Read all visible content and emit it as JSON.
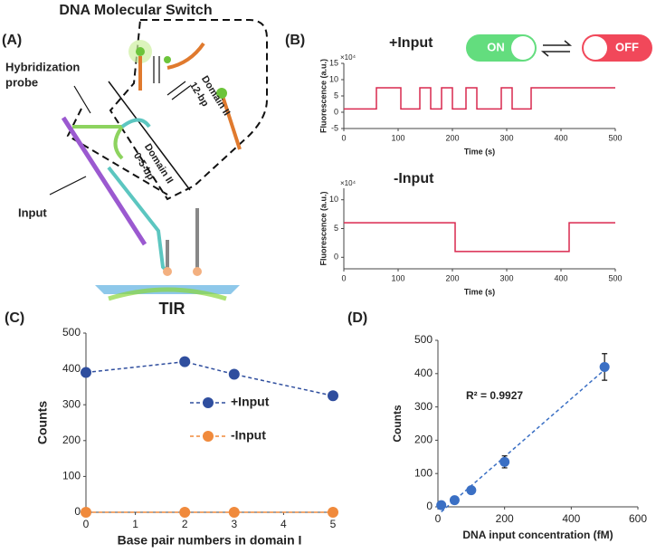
{
  "figure": {
    "title": "DNA Molecular Switch",
    "panels": [
      "(A)",
      "(B)",
      "(C)",
      "(D)"
    ],
    "diagram": {
      "probe_line1": "Hybridization",
      "probe_line2": "probe",
      "input": "Input",
      "domain_upper": "Domain II",
      "domain_upper_bp": "12-bp",
      "domain_lower": "Domain II",
      "domain_lower_bp": "0-5-bp",
      "tir": "TIR"
    },
    "switch": {
      "on": "ON",
      "off": "OFF"
    }
  },
  "chart_data": [
    {
      "type": "line",
      "title": "+Input",
      "xlabel": "Time (s)",
      "ylabel": "Fluorescence (a.u.)",
      "yscale_label": "×10⁴",
      "x": [
        0,
        60,
        60,
        105,
        105,
        140,
        140,
        160,
        160,
        180,
        180,
        200,
        200,
        225,
        225,
        245,
        245,
        290,
        290,
        310,
        310,
        345,
        345,
        500
      ],
      "series": [
        {
          "color": "#d9284f",
          "values": [
            1,
            1,
            7.5,
            7.5,
            1,
            1,
            7.5,
            7.5,
            1,
            1,
            7.5,
            7.5,
            1,
            1,
            7.5,
            7.5,
            1,
            1,
            7.5,
            7.5,
            1,
            1,
            7.5,
            7.5
          ]
        }
      ],
      "xlim": [
        0,
        500
      ],
      "xticks": [
        0,
        100,
        200,
        300,
        400,
        500
      ],
      "ylim": [
        -5,
        15
      ],
      "yticks": [
        -5,
        0,
        5,
        10,
        15
      ]
    },
    {
      "type": "line",
      "title": "-Input",
      "xlabel": "Time (s)",
      "ylabel": "Fluorescence (a.u.)",
      "yscale_label": "×10⁴",
      "x": [
        0,
        205,
        205,
        415,
        415,
        500
      ],
      "series": [
        {
          "color": "#d9284f",
          "values": [
            6,
            6,
            1,
            1,
            6,
            6
          ]
        }
      ],
      "xlim": [
        0,
        500
      ],
      "xticks": [
        0,
        100,
        200,
        300,
        400,
        500
      ],
      "ylim": [
        -2,
        12
      ],
      "yticks": [
        0,
        5,
        10
      ]
    },
    {
      "type": "line",
      "xlabel": "Base pair numbers in domain I",
      "ylabel": "Counts",
      "x": [
        0,
        2,
        3,
        5
      ],
      "line_style": "dashed",
      "markers": true,
      "legend": "center",
      "series": [
        {
          "name": "+Input",
          "color": "#2f4e9e",
          "values": [
            390,
            420,
            385,
            325
          ]
        },
        {
          "name": "-Input",
          "color": "#f08a3c",
          "values": [
            0,
            0,
            0,
            0
          ]
        }
      ],
      "xlim": [
        0,
        5
      ],
      "xticks": [
        0,
        1,
        2,
        3,
        4,
        5
      ],
      "ylim": [
        0,
        500
      ],
      "yticks": [
        0,
        100,
        200,
        300,
        400,
        500
      ]
    },
    {
      "type": "scatter",
      "xlabel": "DNA input concentration (fM)",
      "ylabel": "Counts",
      "annotation": "R² = 0.9927",
      "x": [
        10,
        50,
        100,
        200,
        500
      ],
      "values": [
        5,
        20,
        50,
        135,
        420
      ],
      "errors": [
        3,
        4,
        6,
        18,
        40
      ],
      "color": "#3a6fc4",
      "trendline": true,
      "xlim": [
        0,
        600
      ],
      "xticks": [
        0,
        200,
        400,
        600
      ],
      "ylim": [
        0,
        500
      ],
      "yticks": [
        0,
        100,
        200,
        300,
        400,
        500
      ]
    }
  ]
}
